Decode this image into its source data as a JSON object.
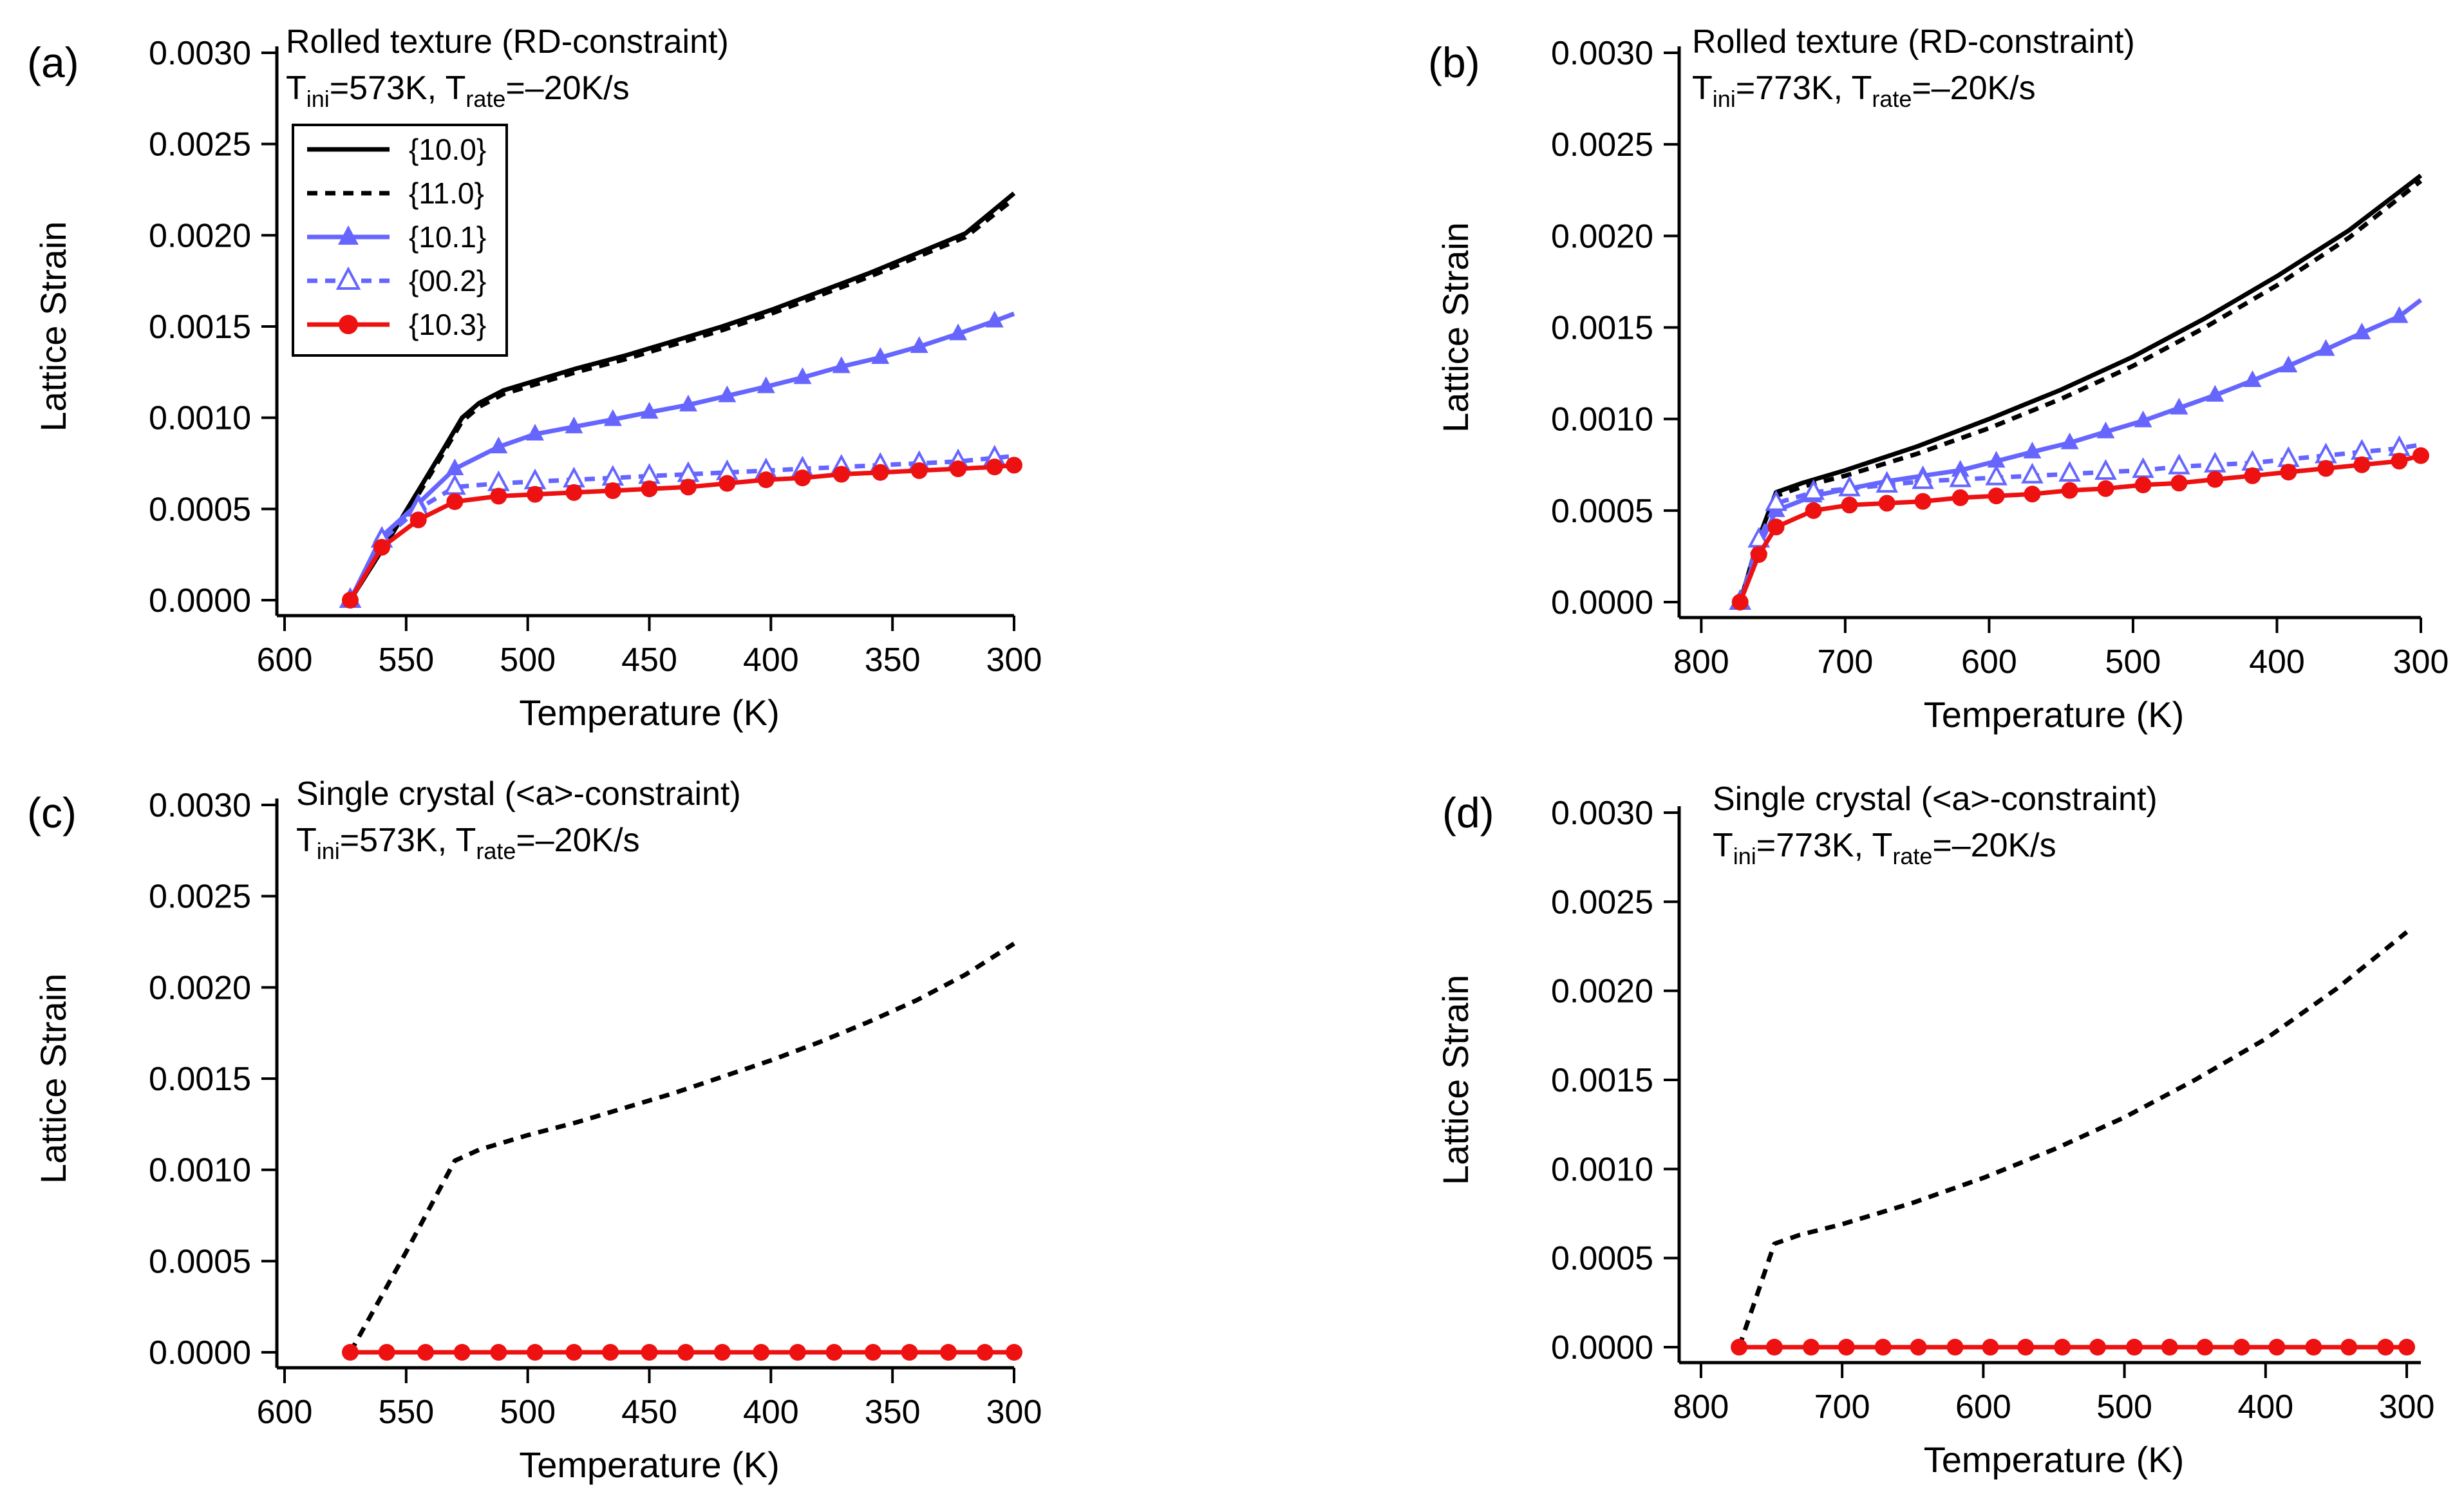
{
  "figure_description_labels": [
    "(a)",
    "(b)",
    "(c)",
    "(d)"
  ],
  "colors": {
    "black": "#000000",
    "blue": "#6666ff",
    "red": "#ee1111"
  },
  "legend": [
    {
      "label": "{10.0}",
      "color": "#000000",
      "dash": "solid",
      "marker": "none"
    },
    {
      "label": "{11.0}",
      "color": "#000000",
      "dash": "dashed",
      "marker": "none"
    },
    {
      "label": "{10.1}",
      "color": "#6666ff",
      "dash": "solid",
      "marker": "triangle-filled"
    },
    {
      "label": "{00.2}",
      "color": "#6666ff",
      "dash": "dashed",
      "marker": "triangle-open"
    },
    {
      "label": "{10.3}",
      "color": "#ee1111",
      "dash": "solid",
      "marker": "circle-filled"
    }
  ],
  "chart_data": [
    {
      "panel": "(a)",
      "type": "line",
      "title_line1": "Rolled texture (RD-constraint)",
      "title_line2": {
        "t1": "T",
        "s1": "ini",
        "t2": "=573K, T",
        "s2": "rate",
        "t3": "=–20K/s"
      },
      "xlabel": "Temperature (K)",
      "ylabel": "Lattice Strain",
      "xlim": [
        600,
        300
      ],
      "ylim": [
        0,
        0.003
      ],
      "xticks": [
        600,
        550,
        500,
        450,
        400,
        350,
        300
      ],
      "xtick_labels": [
        "600",
        "550",
        "500",
        "450",
        "400",
        "350",
        "300"
      ],
      "yticks": [
        0,
        0.0005,
        0.001,
        0.0015,
        0.002,
        0.0025,
        0.003
      ],
      "ytick_labels": [
        "0.0000",
        "0.0005",
        "0.0010",
        "0.0015",
        "0.0020",
        "0.0025",
        "0.0030"
      ],
      "series": [
        {
          "name": "{10.0}",
          "color": "#000000",
          "dash": "solid",
          "marker": "none",
          "x": [
            573,
            555,
            545,
            535,
            527,
            520,
            510,
            500,
            480,
            460,
            440,
            420,
            400,
            380,
            360,
            340,
            320,
            300
          ],
          "y": [
            0,
            0.00038,
            0.0006,
            0.00082,
            0.001,
            0.00108,
            0.00115,
            0.00119,
            0.00127,
            0.00134,
            0.00142,
            0.0015,
            0.00159,
            0.00169,
            0.00179,
            0.0019,
            0.00201,
            0.00223
          ]
        },
        {
          "name": "{11.0}",
          "color": "#000000",
          "dash": "dashed",
          "marker": "none",
          "x": [
            573,
            555,
            545,
            535,
            527,
            520,
            510,
            500,
            480,
            460,
            440,
            420,
            400,
            380,
            360,
            340,
            320,
            300
          ],
          "y": [
            0,
            0.00038,
            0.00058,
            0.0008,
            0.00098,
            0.00106,
            0.00113,
            0.00117,
            0.00125,
            0.00132,
            0.0014,
            0.00148,
            0.00157,
            0.00167,
            0.00177,
            0.00188,
            0.00199,
            0.0022
          ]
        },
        {
          "name": "{10.1}",
          "color": "#6666ff",
          "dash": "solid",
          "marker": "triangle-filled",
          "x": [
            573,
            560,
            545,
            530,
            512,
            497,
            481,
            465,
            450,
            434,
            418,
            402,
            387,
            371,
            355,
            339,
            323,
            308,
            300
          ],
          "y": [
            0,
            0.00035,
            0.00053,
            0.00072,
            0.00084,
            0.00091,
            0.00095,
            0.00099,
            0.00103,
            0.00107,
            0.00112,
            0.00117,
            0.00122,
            0.00128,
            0.00133,
            0.00139,
            0.00146,
            0.00153,
            0.00157
          ]
        },
        {
          "name": "{00.2}",
          "color": "#6666ff",
          "dash": "dashed",
          "marker": "triangle-open",
          "x": [
            573,
            560,
            545,
            530,
            512,
            497,
            481,
            465,
            450,
            434,
            418,
            402,
            387,
            371,
            355,
            339,
            323,
            308,
            300
          ],
          "y": [
            0,
            0.00033,
            0.0005,
            0.00062,
            0.00064,
            0.00065,
            0.00066,
            0.00067,
            0.00068,
            0.00069,
            0.0007,
            0.00071,
            0.00072,
            0.00073,
            0.00074,
            0.00075,
            0.00076,
            0.00078,
            0.00079
          ]
        },
        {
          "name": "{10.3}",
          "color": "#ee1111",
          "dash": "solid",
          "marker": "circle-filled",
          "x": [
            573,
            560,
            545,
            530,
            512,
            497,
            481,
            465,
            450,
            434,
            418,
            402,
            387,
            371,
            355,
            339,
            323,
            308,
            300
          ],
          "y": [
            0,
            0.00029,
            0.00044,
            0.00054,
            0.00057,
            0.00058,
            0.00059,
            0.0006,
            0.00061,
            0.00062,
            0.00064,
            0.00066,
            0.00067,
            0.00069,
            0.0007,
            0.00071,
            0.00072,
            0.00073,
            0.00074
          ]
        }
      ]
    },
    {
      "panel": "(b)",
      "type": "line",
      "title_line1": "Rolled texture (RD-constraint)",
      "title_line2": {
        "t1": "T",
        "s1": "ini",
        "t2": "=773K, T",
        "s2": "rate",
        "t3": "=–20K/s"
      },
      "xlabel": "Temperature (K)",
      "ylabel": "Lattice Strain",
      "xlim": [
        810,
        300
      ],
      "ylim": [
        0,
        0.003
      ],
      "xticks": [
        800,
        700,
        600,
        500,
        400,
        300
      ],
      "xtick_labels": [
        "800",
        "700",
        "600",
        "500",
        "400",
        "300"
      ],
      "yticks": [
        0,
        0.0005,
        0.001,
        0.0015,
        0.002,
        0.0025,
        0.003
      ],
      "ytick_labels": [
        "0.0000",
        "0.0005",
        "0.0010",
        "0.0015",
        "0.0020",
        "0.0025",
        "0.0030"
      ],
      "series": [
        {
          "name": "{10.0}",
          "color": "#000000",
          "dash": "solid",
          "marker": "none",
          "x": [
            773,
            760,
            748,
            730,
            700,
            650,
            600,
            550,
            500,
            450,
            400,
            350,
            300
          ],
          "y": [
            0,
            0.00035,
            0.0006,
            0.00065,
            0.00072,
            0.00085,
            0.001,
            0.00116,
            0.00134,
            0.00155,
            0.00178,
            0.00203,
            0.00233
          ]
        },
        {
          "name": "{11.0}",
          "color": "#000000",
          "dash": "dashed",
          "marker": "none",
          "x": [
            773,
            760,
            748,
            730,
            700,
            650,
            600,
            550,
            500,
            450,
            400,
            350,
            300
          ],
          "y": [
            0,
            0.00034,
            0.00058,
            0.00063,
            0.00069,
            0.00081,
            0.00095,
            0.00111,
            0.00129,
            0.0015,
            0.00173,
            0.00199,
            0.0023
          ]
        },
        {
          "name": "{10.1}",
          "color": "#6666ff",
          "dash": "solid",
          "marker": "triangle-filled",
          "x": [
            773,
            760,
            748,
            722,
            697,
            671,
            646,
            620,
            595,
            570,
            544,
            519,
            493,
            468,
            443,
            417,
            392,
            366,
            341,
            315,
            300
          ],
          "y": [
            0,
            0.0003,
            0.0005,
            0.00058,
            0.00062,
            0.00066,
            0.00069,
            0.00072,
            0.00077,
            0.00082,
            0.00087,
            0.00093,
            0.00099,
            0.00106,
            0.00113,
            0.00121,
            0.00129,
            0.00138,
            0.00147,
            0.00156,
            0.00165
          ]
        },
        {
          "name": "{00.2}",
          "color": "#6666ff",
          "dash": "dashed",
          "marker": "triangle-open",
          "x": [
            773,
            760,
            748,
            722,
            697,
            671,
            646,
            620,
            595,
            570,
            544,
            519,
            493,
            468,
            443,
            417,
            392,
            366,
            341,
            315,
            300
          ],
          "y": [
            0,
            0.00034,
            0.00054,
            0.0006,
            0.00062,
            0.00064,
            0.00066,
            0.00067,
            0.00068,
            0.00069,
            0.0007,
            0.00071,
            0.00072,
            0.00074,
            0.00075,
            0.00076,
            0.00078,
            0.0008,
            0.00082,
            0.00084,
            0.00086
          ]
        },
        {
          "name": "{10.3}",
          "color": "#ee1111",
          "dash": "solid",
          "marker": "circle-filled",
          "x": [
            773,
            760,
            748,
            722,
            697,
            671,
            646,
            620,
            595,
            570,
            544,
            519,
            493,
            468,
            443,
            417,
            392,
            366,
            341,
            315,
            300
          ],
          "y": [
            0,
            0.00026,
            0.00041,
            0.0005,
            0.00053,
            0.00054,
            0.00055,
            0.00057,
            0.00058,
            0.00059,
            0.00061,
            0.00062,
            0.00064,
            0.00065,
            0.00067,
            0.00069,
            0.00071,
            0.00073,
            0.00075,
            0.00077,
            0.0008
          ]
        }
      ]
    },
    {
      "panel": "(c)",
      "type": "line",
      "title_line1": "Single crystal (<a>-constraint)",
      "title_line2": {
        "t1": "T",
        "s1": "ini",
        "t2": "=573K, T",
        "s2": "rate",
        "t3": "=–20K/s"
      },
      "xlabel": "Temperature (K)",
      "ylabel": "Lattice Strain",
      "xlim": [
        600,
        300
      ],
      "ylim": [
        0,
        0.003
      ],
      "xticks": [
        600,
        550,
        500,
        450,
        400,
        350,
        300
      ],
      "xtick_labels": [
        "600",
        "550",
        "500",
        "450",
        "400",
        "350",
        "300"
      ],
      "yticks": [
        0,
        0.0005,
        0.001,
        0.0015,
        0.002,
        0.0025,
        0.003
      ],
      "ytick_labels": [
        "0.0000",
        "0.0005",
        "0.0010",
        "0.0015",
        "0.0020",
        "0.0025",
        "0.0030"
      ],
      "series": [
        {
          "name": "{11.0}",
          "color": "#000000",
          "dash": "dashed",
          "marker": "none",
          "x": [
            573,
            550,
            530,
            520,
            500,
            480,
            460,
            440,
            420,
            400,
            380,
            360,
            340,
            320,
            300
          ],
          "y": [
            0,
            0.00055,
            0.00105,
            0.00111,
            0.00119,
            0.00126,
            0.00134,
            0.00142,
            0.00151,
            0.0016,
            0.0017,
            0.00181,
            0.00193,
            0.00207,
            0.00224
          ]
        },
        {
          "name": "{10.3}",
          "color": "#ee1111",
          "dash": "solid",
          "marker": "circle-filled",
          "x": [
            573,
            558,
            542,
            527,
            512,
            497,
            481,
            466,
            450,
            435,
            420,
            404,
            389,
            374,
            358,
            343,
            327,
            312,
            300
          ],
          "y": [
            0,
            0,
            0,
            0,
            0,
            0,
            0,
            0,
            0,
            0,
            0,
            0,
            0,
            0,
            0,
            0,
            0,
            0,
            0
          ]
        }
      ]
    },
    {
      "panel": "(d)",
      "type": "line",
      "title_line1": "Single crystal (<a>-constraint)",
      "title_line2": {
        "t1": "T",
        "s1": "ini",
        "t2": "=773K, T",
        "s2": "rate",
        "t3": "=–20K/s"
      },
      "xlabel": "Temperature (K)",
      "ylabel": "Lattice Strain",
      "xlim": [
        810,
        290
      ],
      "ylim": [
        0,
        0.003
      ],
      "xticks": [
        800,
        700,
        600,
        500,
        400,
        300
      ],
      "xtick_labels": [
        "800",
        "700",
        "600",
        "500",
        "400",
        "300"
      ],
      "yticks": [
        0,
        0.0005,
        0.001,
        0.0015,
        0.002,
        0.0025,
        0.003
      ],
      "ytick_labels": [
        "0.0000",
        "0.0005",
        "0.0010",
        "0.0015",
        "0.0020",
        "0.0025",
        "0.0030"
      ],
      "series": [
        {
          "name": "{11.0}",
          "color": "#000000",
          "dash": "dashed",
          "marker": "none",
          "x": [
            773,
            760,
            748,
            730,
            700,
            650,
            600,
            550,
            500,
            450,
            400,
            350,
            300
          ],
          "y": [
            0,
            0.0003,
            0.00058,
            0.00063,
            0.00069,
            0.00081,
            0.00095,
            0.00111,
            0.00129,
            0.0015,
            0.00173,
            0.00201,
            0.00233
          ]
        },
        {
          "name": "{10.3}",
          "color": "#ee1111",
          "dash": "solid",
          "marker": "circle-filled",
          "x": [
            773,
            748,
            722,
            697,
            671,
            646,
            620,
            595,
            570,
            544,
            519,
            493,
            468,
            443,
            417,
            392,
            366,
            341,
            315,
            300
          ],
          "y": [
            0,
            0,
            0,
            0,
            0,
            0,
            0,
            0,
            0,
            0,
            0,
            0,
            0,
            0,
            0,
            0,
            0,
            0,
            0,
            0
          ]
        }
      ]
    }
  ]
}
